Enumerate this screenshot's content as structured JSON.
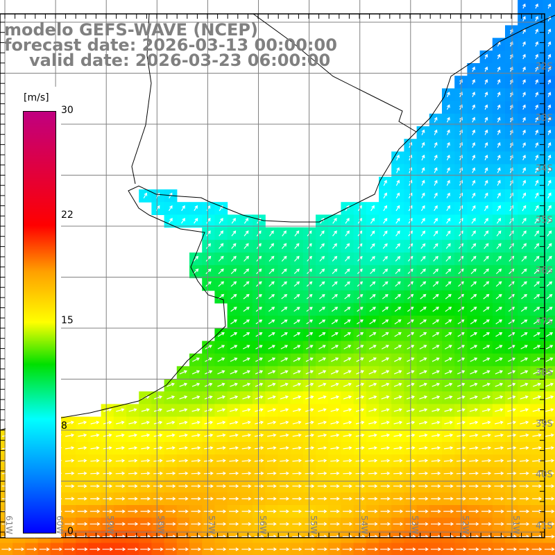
{
  "title": {
    "line1": "modelo GEFS-WAVE (NCEP)",
    "line2": "forecast date: 2026-03-13 00:00:00",
    "line3": "valid date: 2026-03-23 06:00:00"
  },
  "colorbar": {
    "unit": "[m/s]",
    "ticks": [
      "30",
      "22",
      "15",
      "8",
      "0"
    ],
    "range": [
      0,
      30
    ],
    "colors": [
      "#0000ff",
      "#0080ff",
      "#00ffff",
      "#00e000",
      "#ffff00",
      "#ffa000",
      "#ff0000",
      "#c00080"
    ]
  },
  "lat_labels": [
    "32S",
    "33S",
    "34S",
    "35S",
    "36S",
    "37S",
    "38S",
    "39S",
    "40S",
    "41S"
  ],
  "lon_labels": [
    "61W",
    "60W",
    "59W",
    "58W",
    "57W",
    "56W",
    "55W",
    "54W",
    "53W",
    "52W",
    "51W"
  ]
}
